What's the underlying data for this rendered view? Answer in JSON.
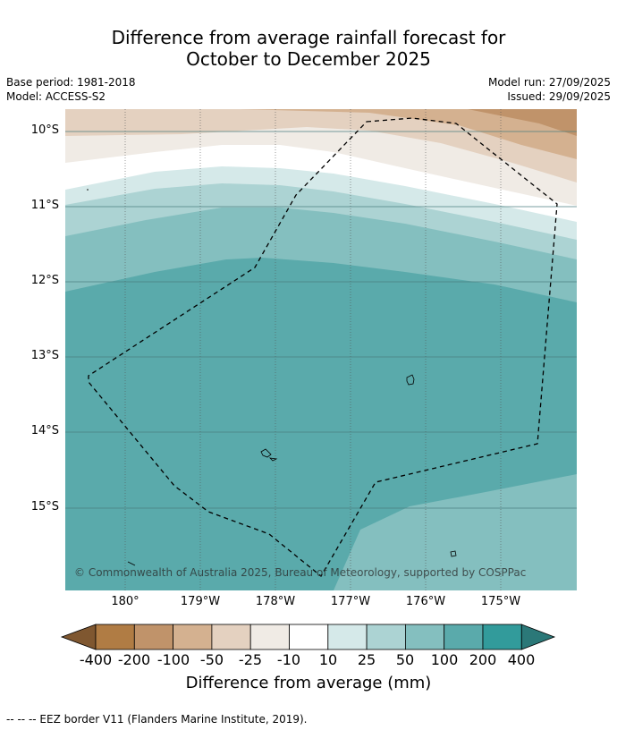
{
  "title": {
    "line1": "Difference from average rainfall forecast for",
    "line2": "October to December 2025"
  },
  "meta": {
    "base_period": "Base period: 1981-2018",
    "model": "Model: ACCESS-S2",
    "model_run": "Model run: 27/09/2025",
    "issued": "Issued: 29/09/2025"
  },
  "map": {
    "lat_labels": [
      "10°S",
      "11°S",
      "12°S",
      "13°S",
      "14°S",
      "15°S"
    ],
    "lon_labels": [
      "180°",
      "179°W",
      "178°W",
      "177°W",
      "176°W",
      "175°W"
    ],
    "copyright": "© Commonwealth of Australia 2025, Bureau of Meteorology, supported by COSPPac",
    "extent": {
      "lon_min": -180.8,
      "lon_max": -174.0,
      "lat_north": -9.7,
      "lat_south": -16.1
    },
    "features": [
      "forecast-contour-bands",
      "eez-border",
      "islands"
    ]
  },
  "colorbar": {
    "labels": [
      "-400",
      "-200",
      "-100",
      "-50",
      "-25",
      "-10",
      "10",
      "25",
      "50",
      "100",
      "200",
      "400"
    ],
    "colors": [
      "#7f5730",
      "#b07c44",
      "#c0936a",
      "#d4b190",
      "#e4d1c0",
      "#f0ebe5",
      "#ffffff",
      "#d5e9e9",
      "#acd3d3",
      "#84bfbf",
      "#5aaaab",
      "#329b9b",
      "#2b7878"
    ],
    "title": "Difference from average (mm)"
  },
  "footnote": "--  --  -- EEZ border V11 (Flanders Marine Institute, 2019)."
}
